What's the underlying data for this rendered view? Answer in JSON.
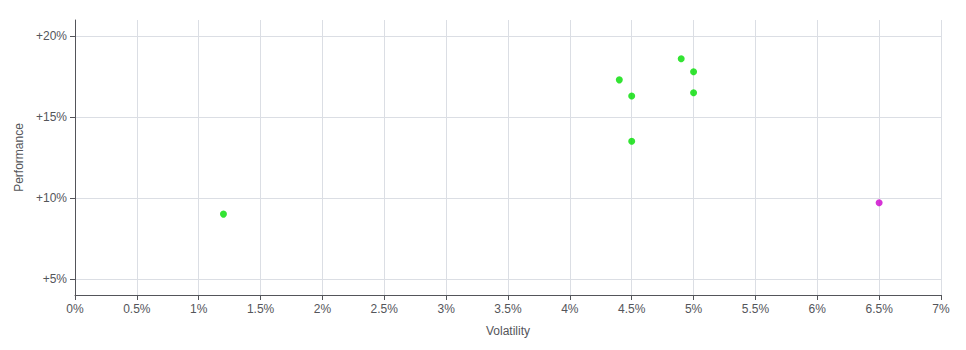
{
  "chart_data": {
    "type": "scatter",
    "xlabel": "Volatility",
    "ylabel": "Performance",
    "xlim": [
      0.0,
      0.07
    ],
    "ylim": [
      0.04,
      0.21
    ],
    "xticks": [
      {
        "value": 0.0,
        "label": "0%"
      },
      {
        "value": 0.005,
        "label": "0.5%"
      },
      {
        "value": 0.01,
        "label": "1%"
      },
      {
        "value": 0.015,
        "label": "1.5%"
      },
      {
        "value": 0.02,
        "label": "2%"
      },
      {
        "value": 0.025,
        "label": "2.5%"
      },
      {
        "value": 0.03,
        "label": "3%"
      },
      {
        "value": 0.035,
        "label": "3.5%"
      },
      {
        "value": 0.04,
        "label": "4%"
      },
      {
        "value": 0.045,
        "label": "4.5%"
      },
      {
        "value": 0.05,
        "label": "5%"
      },
      {
        "value": 0.055,
        "label": "5.5%"
      },
      {
        "value": 0.06,
        "label": "6%"
      },
      {
        "value": 0.065,
        "label": "6.5%"
      },
      {
        "value": 0.07,
        "label": "7%"
      }
    ],
    "yticks": [
      {
        "value": 0.05,
        "label": "+5%"
      },
      {
        "value": 0.1,
        "label": "+10%"
      },
      {
        "value": 0.15,
        "label": "+15%"
      },
      {
        "value": 0.2,
        "label": "+20%"
      }
    ],
    "grid": true,
    "series": [
      {
        "color": "#00dd00",
        "x": [
          0.012,
          0.044,
          0.045,
          0.045,
          0.049,
          0.05,
          0.05
        ],
        "values": [
          0.09,
          0.173,
          0.163,
          0.135,
          0.186,
          0.178,
          0.165
        ]
      },
      {
        "color": "#cc00cc",
        "x": [
          0.065
        ],
        "values": [
          0.097
        ]
      }
    ]
  }
}
